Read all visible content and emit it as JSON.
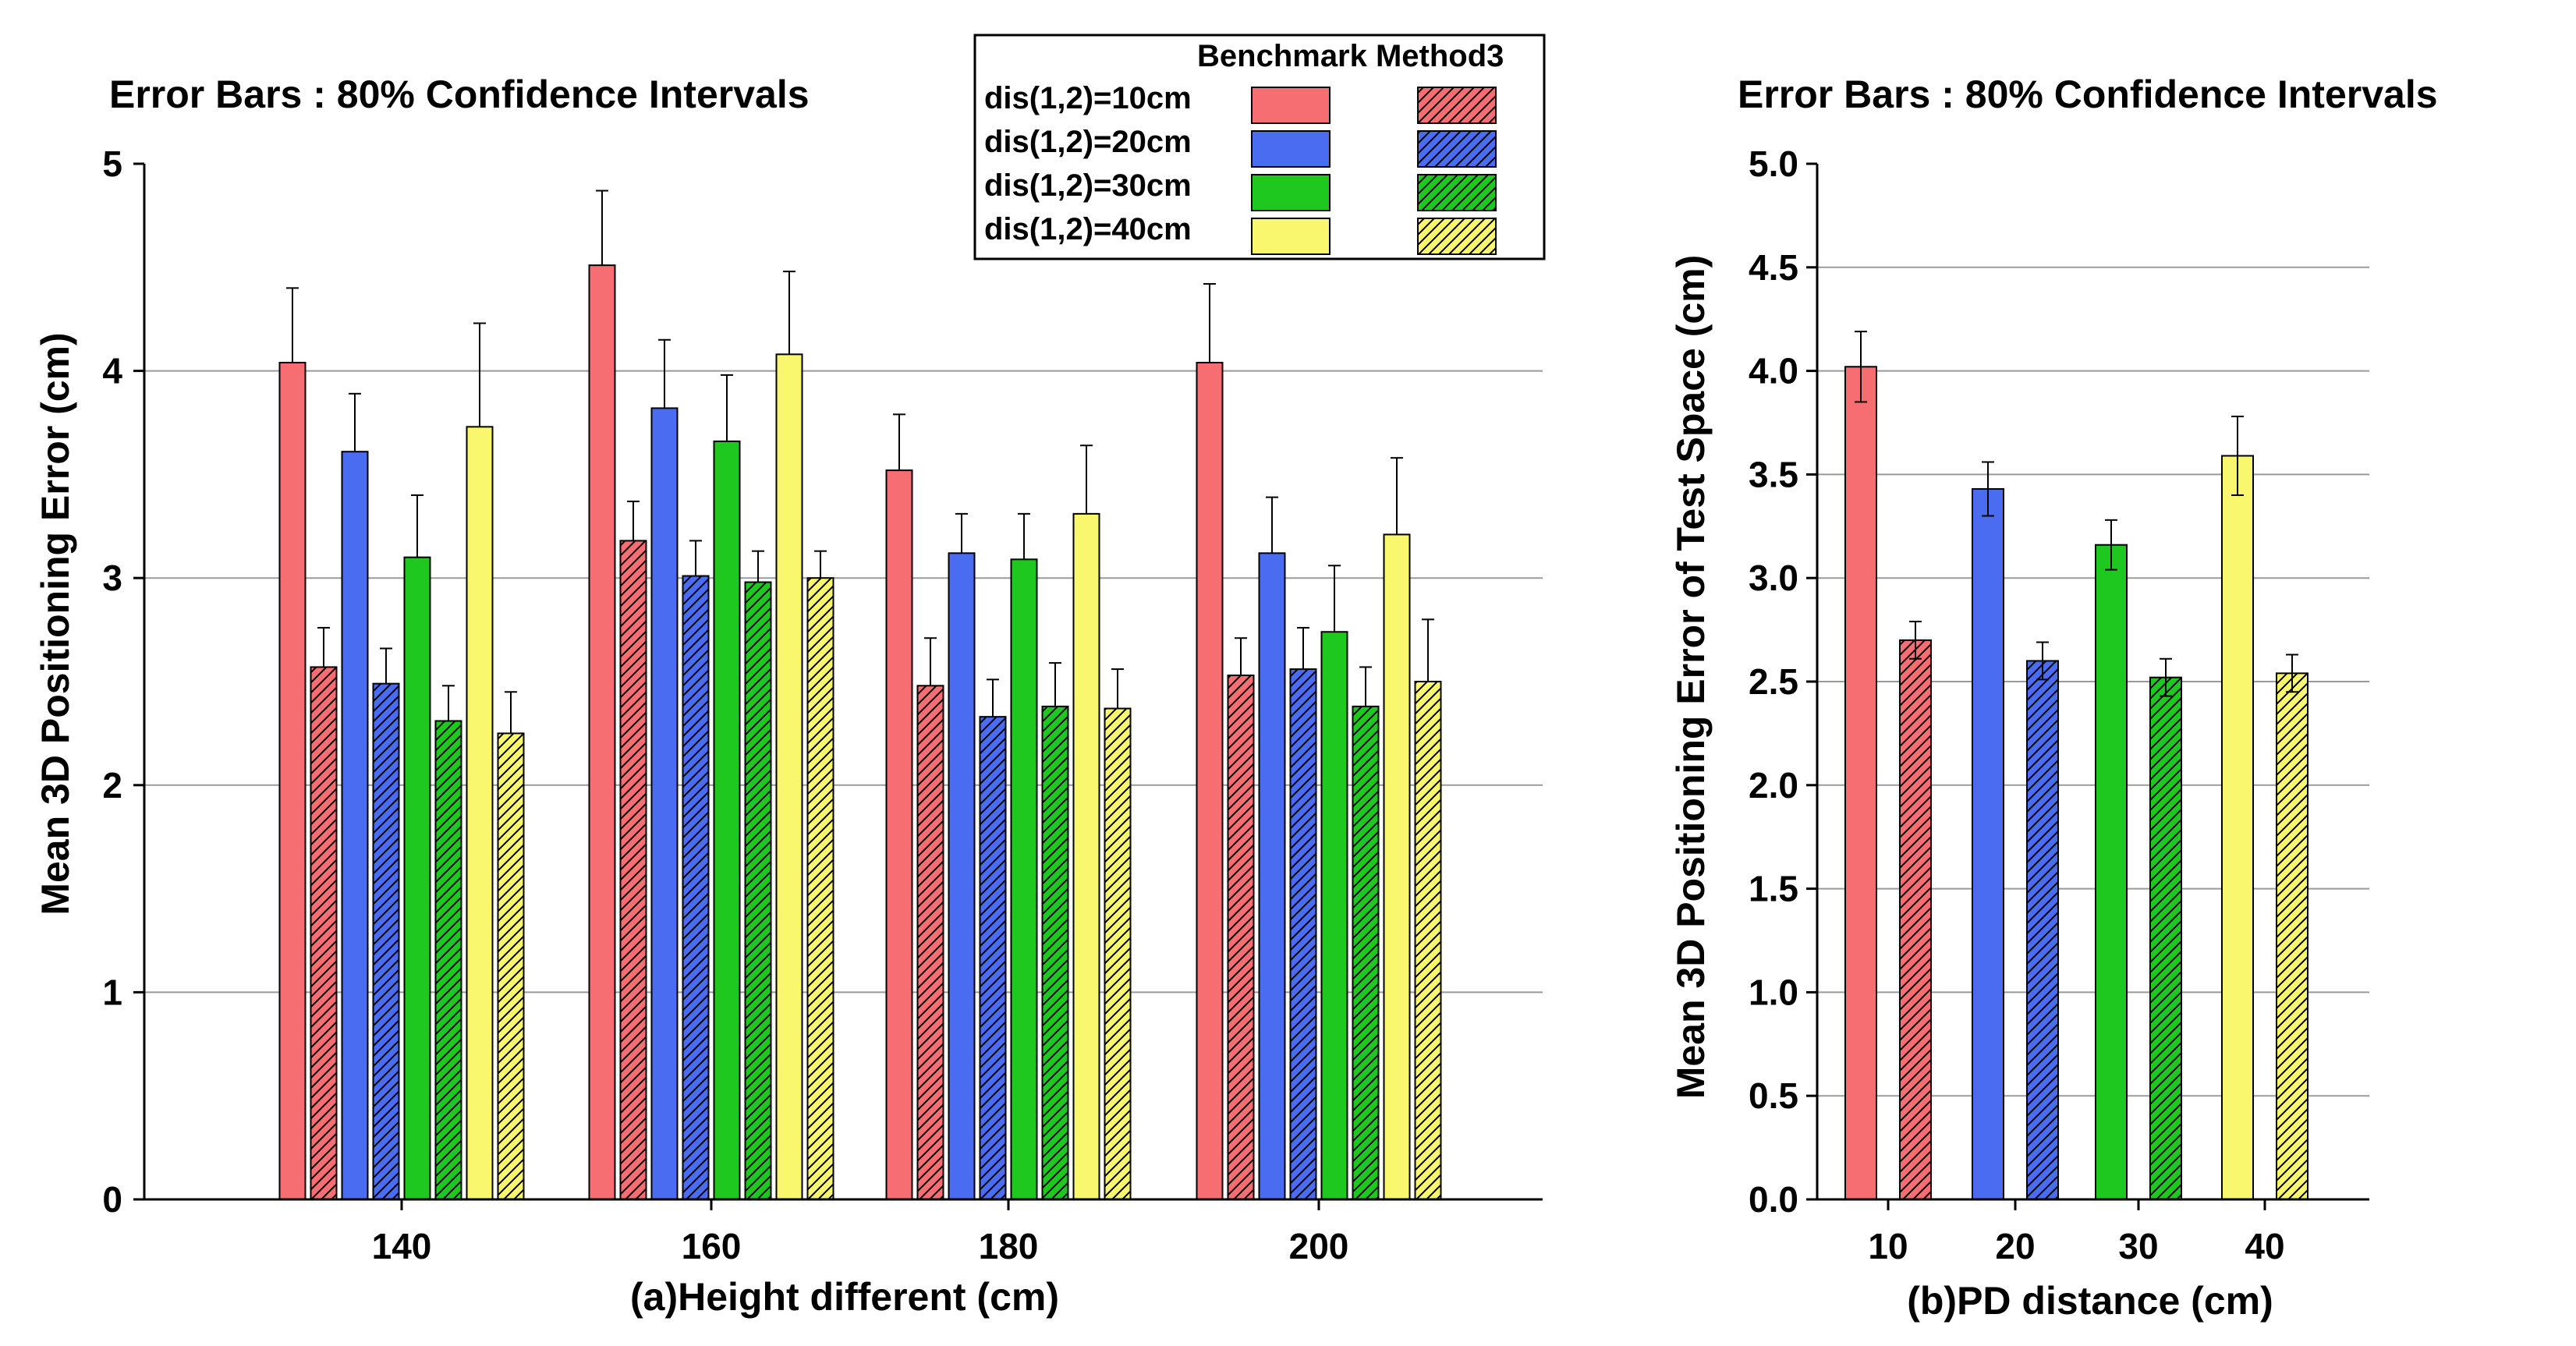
{
  "chart_data": [
    {
      "type": "bar",
      "title": "Error Bars : 80% Confidence Intervals",
      "xlabel": "(a)Height different (cm)",
      "ylabel": "Mean 3D Positioning Error (cm)",
      "ylim": [
        0,
        5
      ],
      "yticks": [
        "0",
        "1",
        "2",
        "3",
        "4",
        "5"
      ],
      "grid": true,
      "categories": [
        "140",
        "160",
        "180",
        "200"
      ],
      "series": [
        {
          "name": "dis(1,2)=10cm",
          "method": "Benchmark",
          "color": "#f76e72",
          "pattern": "solid",
          "values": [
            4.04,
            4.51,
            3.52,
            4.04
          ],
          "err": [
            0.36,
            0.36,
            0.27,
            0.38
          ]
        },
        {
          "name": "dis(1,2)=10cm",
          "method": "Method3",
          "color": "#f76e72",
          "pattern": "hatch",
          "values": [
            2.57,
            3.18,
            2.48,
            2.53
          ],
          "err": [
            0.19,
            0.19,
            0.23,
            0.18
          ]
        },
        {
          "name": "dis(1,2)=20cm",
          "method": "Benchmark",
          "color": "#4a6cf0",
          "pattern": "solid",
          "values": [
            3.61,
            3.82,
            3.12,
            3.12
          ],
          "err": [
            0.28,
            0.33,
            0.19,
            0.27
          ]
        },
        {
          "name": "dis(1,2)=20cm",
          "method": "Method3",
          "color": "#4a6cf0",
          "pattern": "hatch",
          "values": [
            2.49,
            3.01,
            2.33,
            2.56
          ],
          "err": [
            0.17,
            0.17,
            0.18,
            0.2
          ]
        },
        {
          "name": "dis(1,2)=30cm",
          "method": "Benchmark",
          "color": "#1fc81f",
          "pattern": "solid",
          "values": [
            3.1,
            3.66,
            3.09,
            2.74
          ],
          "err": [
            0.3,
            0.32,
            0.22,
            0.32
          ]
        },
        {
          "name": "dis(1,2)=30cm",
          "method": "Method3",
          "color": "#1fc81f",
          "pattern": "hatch",
          "values": [
            2.31,
            2.98,
            2.38,
            2.38
          ],
          "err": [
            0.17,
            0.15,
            0.21,
            0.19
          ]
        },
        {
          "name": "dis(1,2)=40cm",
          "method": "Benchmark",
          "color": "#f9f76e",
          "pattern": "solid",
          "values": [
            3.73,
            4.08,
            3.31,
            3.21
          ],
          "err": [
            0.5,
            0.4,
            0.33,
            0.37
          ]
        },
        {
          "name": "dis(1,2)=40cm",
          "method": "Method3",
          "color": "#f9f76e",
          "pattern": "hatch",
          "values": [
            2.25,
            3.0,
            2.37,
            2.5
          ],
          "err": [
            0.2,
            0.13,
            0.19,
            0.3
          ]
        }
      ],
      "legend": {
        "placement": "top-right",
        "header": "Benchmark Method3",
        "entries": [
          "dis(1,2)=10cm",
          "dis(1,2)=20cm",
          "dis(1,2)=30cm",
          "dis(1,2)=40cm"
        ]
      }
    },
    {
      "type": "bar",
      "title": "Error Bars : 80% Confidence Intervals",
      "xlabel": "(b)PD distance (cm)",
      "ylabel": "Mean 3D Positioning Error of Test Space (cm)",
      "ylim": [
        0,
        5
      ],
      "yticks": [
        "0.0",
        "0.5",
        "1.0",
        "1.5",
        "2.0",
        "2.5",
        "3.0",
        "3.5",
        "4.0",
        "4.5",
        "5.0"
      ],
      "grid": true,
      "categories": [
        "10",
        "20",
        "30",
        "40"
      ],
      "series": [
        {
          "name": "Benchmark",
          "pattern": "solid",
          "colors": [
            "#f76e72",
            "#4a6cf0",
            "#1fc81f",
            "#f9f76e"
          ],
          "values": [
            4.02,
            3.43,
            3.16,
            3.59
          ],
          "err": [
            0.17,
            0.13,
            0.12,
            0.19
          ]
        },
        {
          "name": "Method3",
          "pattern": "hatch",
          "colors": [
            "#f76e72",
            "#4a6cf0",
            "#1fc81f",
            "#f9f76e"
          ],
          "values": [
            2.7,
            2.6,
            2.52,
            2.54
          ],
          "err": [
            0.09,
            0.09,
            0.09,
            0.09
          ]
        }
      ]
    }
  ]
}
